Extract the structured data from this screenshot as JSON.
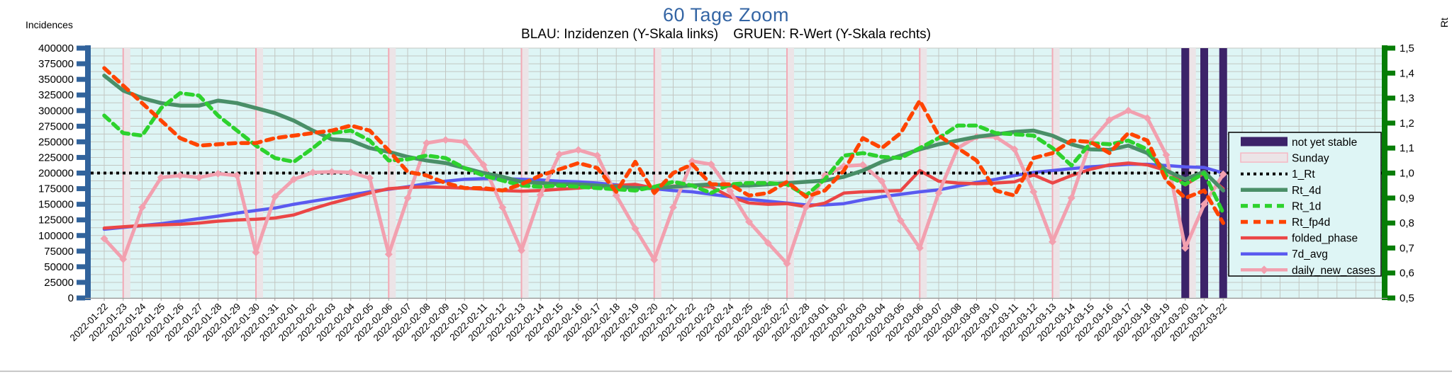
{
  "header": {
    "title": "60 Tage Zoom",
    "subtitle": "BLAU: Inzidenzen (Y-Skala links)    GRUEN: R-Wert (Y-Skala rechts)"
  },
  "left_axis": {
    "title": "Incidences",
    "min": 0,
    "max": 400000,
    "major_step": 25000,
    "minor_step": 12500,
    "tick_labels": [
      "400000",
      "375000",
      "350000",
      "325000",
      "300000",
      "275000",
      "250000",
      "225000",
      "200000",
      "175000",
      "150000",
      "125000",
      "100000",
      "75000",
      "50000",
      "25000",
      "0"
    ],
    "color": "#31639c"
  },
  "right_axis": {
    "title": "Rt",
    "min": 0.5,
    "max": 1.5,
    "step": 0.1,
    "tick_labels": [
      "1,5",
      "1,4",
      "1,3",
      "1,2",
      "1,1",
      "1,0",
      "0,9",
      "0,8",
      "0,7",
      "0,6",
      "0,5"
    ],
    "color": "#067d06"
  },
  "legend": {
    "items": [
      {
        "label": "not yet stable",
        "swatch": "rect",
        "color": "#3c2369"
      },
      {
        "label": "Sunday",
        "swatch": "rect-outline",
        "color": "#ece4e7",
        "border": "#f5b8c4"
      },
      {
        "label": "1_Rt",
        "swatch": "line",
        "color": "#000000",
        "dash": "4 5",
        "width": 4
      },
      {
        "label": "Rt_4d",
        "swatch": "line",
        "color": "#4a8f68",
        "dash": "",
        "width": 5.5
      },
      {
        "label": "Rt_1d",
        "swatch": "line",
        "color": "#2dd22d",
        "dash": "10 7",
        "width": 5.5
      },
      {
        "label": "Rt_fp4d",
        "swatch": "line",
        "color": "#ff4400",
        "dash": "10 8",
        "width": 5.5
      },
      {
        "label": "folded_phase",
        "swatch": "line",
        "color": "#eb4646",
        "dash": "",
        "width": 4.5
      },
      {
        "label": "7d_avg",
        "swatch": "line",
        "color": "#5a5af0",
        "dash": "",
        "width": 4.5
      },
      {
        "label": "daily_new_cases",
        "swatch": "line-marker",
        "color": "#f2a0af",
        "dash": "",
        "width": 4.5
      }
    ]
  },
  "chart_data": {
    "type": "line",
    "title": "60 Tage Zoom",
    "xlabel": "",
    "ylabel_left": "Incidences",
    "ylabel_right": "Rt",
    "left_range": [
      0,
      400000
    ],
    "right_range": [
      0.5,
      1.5
    ],
    "grid": true,
    "legend_position": "right-inside",
    "x": [
      "2022-01-22",
      "2022-01-23",
      "2022-01-24",
      "2022-01-25",
      "2022-01-26",
      "2022-01-27",
      "2022-01-28",
      "2022-01-29",
      "2022-01-30",
      "2022-01-31",
      "2022-02-01",
      "2022-02-02",
      "2022-02-03",
      "2022-02-04",
      "2022-02-05",
      "2022-02-06",
      "2022-02-07",
      "2022-02-08",
      "2022-02-09",
      "2022-02-10",
      "2022-02-11",
      "2022-02-12",
      "2022-02-13",
      "2022-02-14",
      "2022-02-15",
      "2022-02-16",
      "2022-02-17",
      "2022-02-18",
      "2022-02-19",
      "2022-02-20",
      "2022-02-21",
      "2022-02-22",
      "2022-02-23",
      "2022-02-24",
      "2022-02-25",
      "2022-02-26",
      "2022-02-27",
      "2022-02-28",
      "2022-03-01",
      "2022-03-02",
      "2022-03-03",
      "2022-03-04",
      "2022-03-05",
      "2022-03-06",
      "2022-03-07",
      "2022-03-08",
      "2022-03-09",
      "2022-03-10",
      "2022-03-11",
      "2022-03-12",
      "2022-03-13",
      "2022-03-14",
      "2022-03-15",
      "2022-03-16",
      "2022-03-17",
      "2022-03-18",
      "2022-03-19",
      "2022-03-20",
      "2022-03-21",
      "2022-03-22"
    ],
    "sundays": [
      "2022-01-23",
      "2022-01-30",
      "2022-02-06",
      "2022-02-13",
      "2022-02-20",
      "2022-02-27",
      "2022-03-06",
      "2022-03-13",
      "2022-03-20"
    ],
    "not_yet_stable": [
      "2022-03-20",
      "2022-03-21",
      "2022-03-22"
    ],
    "series": [
      {
        "name": "1_Rt",
        "axis": "right",
        "color": "#000000",
        "dash": "4 5",
        "width": 4,
        "constant": 1.0
      },
      {
        "name": "Rt_4d",
        "axis": "right",
        "color": "#4a8f68",
        "dash": "",
        "width": 5.5,
        "values": [
          1.39,
          1.33,
          1.3,
          1.28,
          1.27,
          1.27,
          1.29,
          1.28,
          1.26,
          1.24,
          1.21,
          1.17,
          1.135,
          1.13,
          1.1,
          1.085,
          1.065,
          1.05,
          1.04,
          1.02,
          1.0,
          0.985,
          0.965,
          0.96,
          0.955,
          0.955,
          0.95,
          0.945,
          0.94,
          0.94,
          0.945,
          0.95,
          0.955,
          0.95,
          0.95,
          0.955,
          0.96,
          0.965,
          0.97,
          0.985,
          1.01,
          1.045,
          1.07,
          1.095,
          1.115,
          1.13,
          1.145,
          1.155,
          1.165,
          1.17,
          1.15,
          1.115,
          1.095,
          1.093,
          1.11,
          1.08,
          1.01,
          0.975,
          1.005,
          0.93
        ]
      },
      {
        "name": "Rt_1d",
        "axis": "right",
        "color": "#2dd22d",
        "dash": "10 7",
        "width": 5.5,
        "values": [
          1.23,
          1.16,
          1.15,
          1.26,
          1.32,
          1.31,
          1.23,
          1.17,
          1.11,
          1.06,
          1.045,
          1.1,
          1.16,
          1.17,
          1.13,
          1.05,
          1.055,
          1.07,
          1.06,
          1.02,
          0.99,
          0.97,
          0.95,
          0.945,
          0.95,
          0.945,
          0.94,
          0.935,
          0.93,
          0.945,
          0.965,
          0.95,
          0.92,
          0.955,
          0.96,
          0.96,
          0.955,
          0.91,
          0.975,
          1.07,
          1.08,
          1.065,
          1.06,
          1.1,
          1.14,
          1.19,
          1.19,
          1.16,
          1.155,
          1.15,
          1.1,
          1.03,
          1.12,
          1.115,
          1.13,
          1.095,
          0.99,
          0.955,
          1.0,
          0.84
        ]
      },
      {
        "name": "Rt_fp4d",
        "axis": "right",
        "color": "#ff4400",
        "dash": "10 8",
        "width": 5.5,
        "values": [
          1.42,
          1.35,
          1.28,
          1.21,
          1.14,
          1.11,
          1.115,
          1.12,
          1.12,
          1.14,
          1.15,
          1.16,
          1.17,
          1.19,
          1.17,
          1.09,
          1.005,
          0.99,
          0.96,
          0.94,
          0.94,
          0.93,
          0.955,
          0.99,
          1.015,
          1.04,
          1.02,
          0.925,
          1.045,
          0.92,
          1.0,
          1.035,
          0.955,
          0.955,
          0.91,
          0.92,
          0.965,
          0.905,
          0.93,
          1.01,
          1.14,
          1.1,
          1.16,
          1.29,
          1.15,
          1.1,
          1.05,
          0.93,
          0.91,
          1.06,
          1.08,
          1.13,
          1.125,
          1.08,
          1.16,
          1.13,
          0.97,
          0.9,
          0.93,
          0.8
        ]
      },
      {
        "name": "folded_phase",
        "axis": "left",
        "color": "#eb4646",
        "dash": "",
        "width": 4.5,
        "values": [
          112000,
          114000,
          116000,
          117000,
          118000,
          120000,
          123000,
          125000,
          126000,
          128000,
          133000,
          143000,
          152000,
          160000,
          168000,
          175000,
          177000,
          178000,
          177000,
          176000,
          174000,
          172000,
          171000,
          172000,
          174000,
          176000,
          178000,
          180000,
          182000,
          176000,
          179000,
          181000,
          178000,
          162000,
          152000,
          150000,
          151000,
          146000,
          152000,
          168000,
          170000,
          171000,
          172000,
          204000,
          187000,
          184000,
          183000,
          184000,
          186000,
          197000,
          184000,
          196000,
          206000,
          213000,
          216000,
          213000,
          204000,
          181000,
          200000,
          175000
        ]
      },
      {
        "name": "7d_avg",
        "axis": "left",
        "color": "#5a5af0",
        "dash": "",
        "width": 4.5,
        "values": [
          110000,
          113000,
          116000,
          119000,
          123000,
          127000,
          131000,
          136000,
          140000,
          144000,
          150000,
          155000,
          160000,
          165000,
          170000,
          174000,
          178000,
          183000,
          187000,
          190000,
          191000,
          191000,
          190000,
          189000,
          187000,
          186000,
          184000,
          181000,
          178000,
          175000,
          172000,
          170000,
          166000,
          162000,
          158000,
          155000,
          152000,
          149000,
          149000,
          151000,
          157000,
          162000,
          166000,
          170000,
          173000,
          179000,
          185000,
          190000,
          196000,
          201000,
          204000,
          207000,
          210000,
          212000,
          214000,
          214000,
          212000,
          210000,
          209000,
          200000
        ]
      },
      {
        "name": "daily_new_cases",
        "axis": "left",
        "color": "#f2a0af",
        "dash": "",
        "width": 5,
        "marker": "diamond",
        "values": [
          95000,
          62000,
          145000,
          193000,
          196000,
          193000,
          199000,
          196000,
          73000,
          162000,
          190000,
          201000,
          202000,
          201000,
          192000,
          70000,
          160000,
          248000,
          253000,
          250000,
          213000,
          145000,
          76000,
          165000,
          230000,
          237000,
          228000,
          164000,
          111000,
          61000,
          145000,
          219000,
          214000,
          171000,
          122000,
          88000,
          55000,
          145000,
          196000,
          211000,
          213000,
          187000,
          124000,
          80000,
          168000,
          240000,
          258000,
          258000,
          238000,
          170000,
          90000,
          160000,
          250000,
          285000,
          300000,
          288000,
          229000,
          80000,
          150000,
          198000
        ]
      }
    ]
  },
  "colors": {
    "plot_bg": "#def5f5",
    "grid": "#c2c6c2",
    "sunday_band": "#ece4e7",
    "sunday_line": "#f2aab6",
    "not_stable_band": "#3c2369",
    "title": "#3465a4",
    "left_axis": "#31639c",
    "right_axis": "#067d06"
  }
}
